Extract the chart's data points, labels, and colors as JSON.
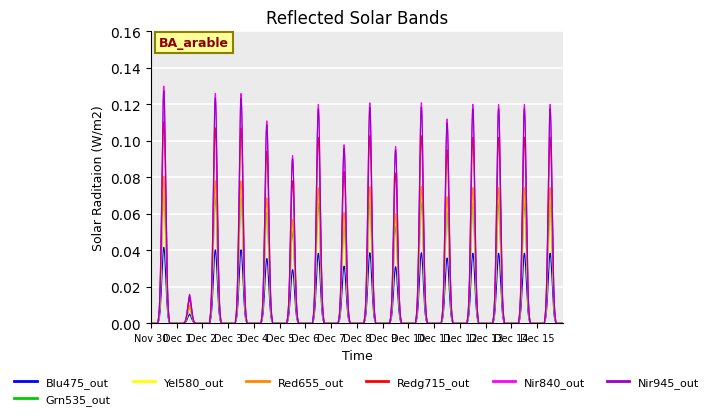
{
  "title": "Reflected Solar Bands",
  "ylabel": "Solar Raditaion (W/m2)",
  "xlabel": "Time",
  "annotation_text": "BA_arable",
  "ylim": [
    0,
    0.16
  ],
  "series": [
    {
      "name": "Blu475_out",
      "color": "#0000FF"
    },
    {
      "name": "Grn535_out",
      "color": "#00CC00"
    },
    {
      "name": "Yel580_out",
      "color": "#FFFF00"
    },
    {
      "name": "Red655_out",
      "color": "#FF8800"
    },
    {
      "name": "Redg715_out",
      "color": "#FF0000"
    },
    {
      "name": "Nir840_out",
      "color": "#FF00FF"
    },
    {
      "name": "Nir945_out",
      "color": "#9900CC"
    }
  ],
  "x_tick_labels": [
    "Nov 30",
    "Dec 1",
    "Dec 2",
    "Dec 3",
    "Dec 4",
    "Dec 5",
    "Dec 6",
    "Dec 7",
    "Dec 8",
    "Dec 9",
    "Dec 10",
    "Dec 11",
    "Dec 12",
    "Dec 13",
    "Dec 14",
    "Dec 15"
  ],
  "n_days": 16,
  "background_color": "#E8E8E8",
  "title_fontsize": 12,
  "axis_bg_color": "#EBEBEB",
  "scale_factors": [
    0.32,
    0.55,
    0.6,
    0.62,
    0.85,
    1.0,
    0.98
  ],
  "day_peaks": [
    0.13,
    0.015,
    0.126,
    0.126,
    0.111,
    0.092,
    0.12,
    0.098,
    0.121,
    0.097,
    0.121,
    0.112,
    0.12,
    0.12,
    0.12,
    0.12
  ],
  "small_peak_days": [
    1,
    2,
    8,
    10,
    11
  ],
  "small_peak_vals": [
    0.016,
    0.029,
    0.008,
    0.01,
    0.01
  ]
}
